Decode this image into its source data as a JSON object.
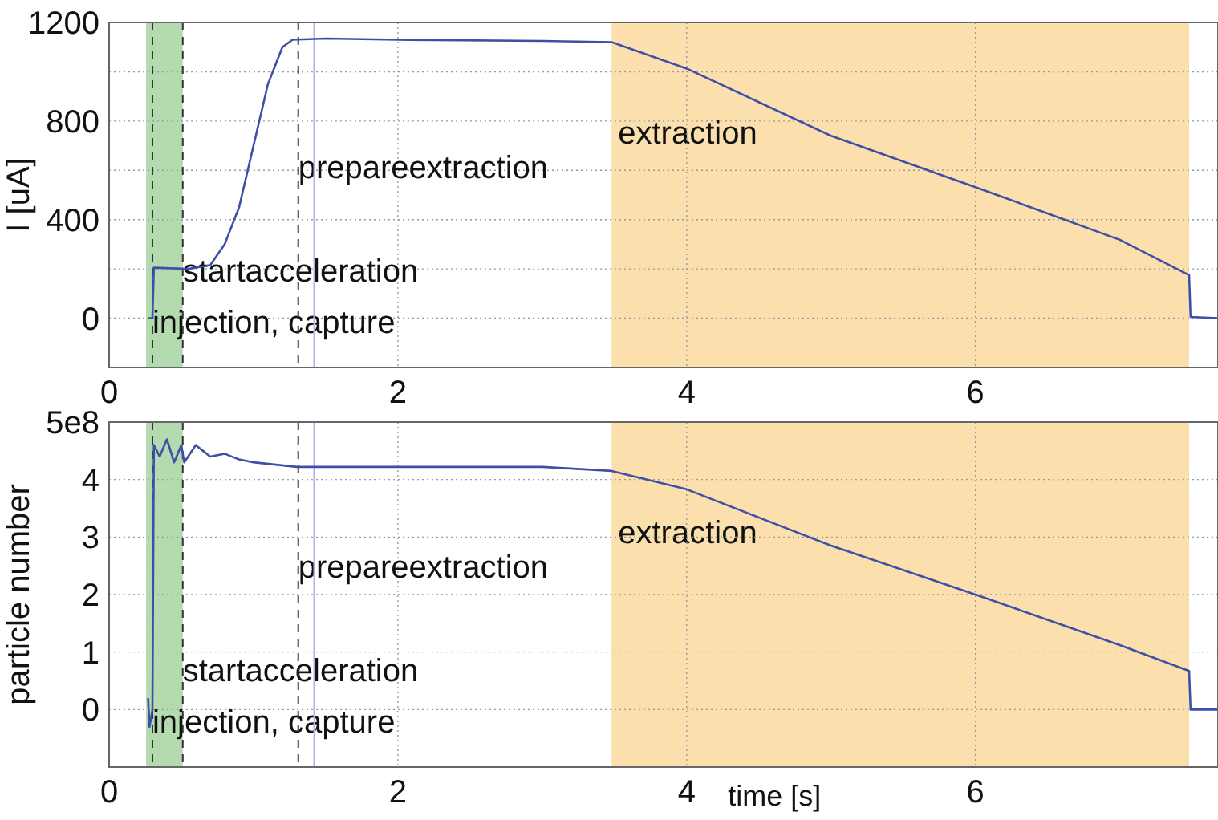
{
  "chart_data": [
    {
      "type": "line",
      "ylabel": "I  [uA]",
      "grid": true,
      "xlim": [
        0,
        7.68
      ],
      "ylim": [
        -200,
        1200
      ],
      "xticks": [
        0,
        2,
        4,
        6
      ],
      "yticks": [
        0,
        {
          "value": 200,
          "label": null
        },
        400,
        {
          "value": 600,
          "label": null
        },
        800,
        {
          "value": 1000,
          "label": null
        },
        1200
      ],
      "series": [
        {
          "color": "#3f4fa8",
          "x": [
            0.27,
            0.3,
            0.31,
            0.55,
            0.7,
            0.8,
            0.9,
            1.0,
            1.1,
            1.2,
            1.27,
            1.5,
            2,
            3,
            3.48,
            4,
            5,
            6,
            7,
            7.48,
            7.49,
            7.68
          ],
          "values": [
            0,
            0,
            205,
            200,
            215,
            300,
            450,
            700,
            950,
            1100,
            1130,
            1135,
            1130,
            1125,
            1120,
            1013,
            740,
            532,
            318,
            175,
            5,
            0
          ]
        }
      ],
      "bands": [
        {
          "axis": "x",
          "from": 0.256,
          "to": 0.51,
          "color": "#b4dbb0"
        },
        {
          "axis": "x",
          "from": 3.48,
          "to": 7.48,
          "color": "#fbe0ae",
          "label": "extraction"
        }
      ],
      "ref_lines": [
        {
          "axis": "x",
          "value": 0.3,
          "label": "injection, capture",
          "color": "#333333",
          "line_style": "dashed"
        },
        {
          "axis": "x",
          "value": 0.51,
          "label": "startacceleration",
          "color": "#333333",
          "line_style": "dashed"
        },
        {
          "axis": "x",
          "value": 1.31,
          "label": "prepareextraction",
          "color": "#333333",
          "line_style": "dashed"
        },
        {
          "axis": "x",
          "value": 1.42,
          "color": "#b0b4e8",
          "line_style": "solid"
        }
      ]
    },
    {
      "type": "line",
      "ylabel": "particle number",
      "xlabel": "time [s]",
      "grid": true,
      "xlim": [
        0,
        7.68
      ],
      "ylim": [
        -1,
        5
      ],
      "xticks": [
        0,
        2,
        4,
        6
      ],
      "yticks": [
        0,
        1,
        2,
        3,
        4,
        {
          "value": 5,
          "label": null
        }
      ],
      "annotations": [
        "5e8"
      ],
      "series": [
        {
          "color": "#3f4fa8",
          "x": [
            0.27,
            0.28,
            0.3,
            0.31,
            0.35,
            0.4,
            0.45,
            0.5,
            0.52,
            0.6,
            0.7,
            0.8,
            0.9,
            1.0,
            1.3,
            2,
            3,
            3.48,
            4,
            5,
            6,
            7,
            7.48,
            7.49,
            7.68
          ],
          "values": [
            0.2,
            -0.3,
            0,
            4.6,
            4.4,
            4.7,
            4.3,
            4.6,
            4.3,
            4.6,
            4.4,
            4.45,
            4.35,
            4.3,
            4.22,
            4.22,
            4.22,
            4.15,
            3.83,
            2.85,
            2.0,
            1.12,
            0.67,
            0,
            0
          ]
        }
      ],
      "bands": [
        {
          "axis": "x",
          "from": 0.256,
          "to": 0.51,
          "color": "#b4dbb0"
        },
        {
          "axis": "x",
          "from": 3.48,
          "to": 7.48,
          "color": "#fbe0ae",
          "label": "extraction"
        }
      ],
      "ref_lines": [
        {
          "axis": "x",
          "value": 0.3,
          "label": "injection, capture",
          "color": "#333333",
          "line_style": "dashed"
        },
        {
          "axis": "x",
          "value": 0.51,
          "label": "startacceleration",
          "color": "#333333",
          "line_style": "dashed"
        },
        {
          "axis": "x",
          "value": 1.31,
          "label": "prepareextraction",
          "color": "#333333",
          "line_style": "dashed"
        },
        {
          "axis": "x",
          "value": 1.42,
          "color": "#b0b4e8",
          "line_style": "solid"
        }
      ]
    }
  ]
}
